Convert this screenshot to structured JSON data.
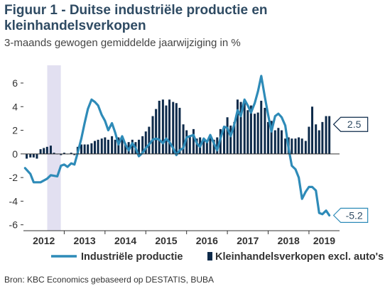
{
  "header": {
    "title": "Figuur 1 - Duitse industriële productie en kleinhandelsverkopen",
    "subtitle": "3-maands gewogen gemiddelde jaarwijziging in %"
  },
  "footer": {
    "source": "Bron: KBC Economics gebaseerd op DESTATIS, BUBA"
  },
  "chart_data": {
    "type": "line",
    "title": "Figuur 1 - Duitse industriële productie en kleinhandelsverkopen",
    "subtitle": "3-maands gewogen gemiddelde jaarwijziging in %",
    "xlabel": "",
    "ylabel": "",
    "xlim": [
      2012.0,
      2019.75
    ],
    "ylim": [
      -6.5,
      7.5
    ],
    "yticks": [
      -6,
      -4,
      -2,
      0,
      2,
      4,
      6
    ],
    "xtick_labels": [
      "2012",
      "2013",
      "2014",
      "2015",
      "2016",
      "2017",
      "2018",
      "2019"
    ],
    "grid": false,
    "legend_position": "bottom",
    "shaded_period": {
      "from": 2012.583,
      "to": 2012.917
    },
    "colors": {
      "line": "#2e8bb8",
      "bars": "#0d2a4a",
      "shade": "#e2e0f1",
      "axis": "#333333",
      "text": "#333333",
      "title": "#2f4b63"
    },
    "series": [
      {
        "name": "Industriële productie",
        "type": "line",
        "x": [
          2012.04,
          2012.17,
          2012.25,
          2012.42,
          2012.58,
          2012.67,
          2012.83,
          2012.92,
          2013.0,
          2013.08,
          2013.17,
          2013.25,
          2013.33,
          2013.42,
          2013.5,
          2013.58,
          2013.67,
          2013.75,
          2013.83,
          2013.92,
          2014.0,
          2014.08,
          2014.17,
          2014.25,
          2014.33,
          2014.42,
          2014.5,
          2014.58,
          2014.67,
          2014.75,
          2014.83,
          2014.92,
          2015.0,
          2015.08,
          2015.17,
          2015.25,
          2015.33,
          2015.42,
          2015.5,
          2015.58,
          2015.67,
          2015.75,
          2015.83,
          2015.92,
          2016.0,
          2016.08,
          2016.17,
          2016.25,
          2016.33,
          2016.42,
          2016.5,
          2016.58,
          2016.67,
          2016.75,
          2016.83,
          2016.92,
          2017.0,
          2017.08,
          2017.17,
          2017.25,
          2017.33,
          2017.42,
          2017.5,
          2017.58,
          2017.67,
          2017.75,
          2017.83,
          2017.92,
          2018.0,
          2018.08,
          2018.17,
          2018.25,
          2018.33,
          2018.42,
          2018.5,
          2018.58,
          2018.67,
          2018.75,
          2018.83,
          2018.92,
          2019.0,
          2019.08,
          2019.17,
          2019.25,
          2019.33,
          2019.42,
          2019.5
        ],
        "values": [
          -1.2,
          -1.7,
          -2.4,
          -2.4,
          -2.1,
          -1.8,
          -1.9,
          -1.0,
          -0.9,
          -1.1,
          -0.8,
          -0.9,
          0.1,
          1.3,
          2.6,
          3.8,
          4.6,
          4.4,
          4.1,
          3.3,
          2.8,
          2.0,
          2.6,
          1.8,
          0.8,
          1.5,
          0.8,
          0.3,
          0.9,
          0.5,
          -0.2,
          0.1,
          0.5,
          0.8,
          1.2,
          1.3,
          1.2,
          0.9,
          1.3,
          1.0,
          0.5,
          -0.1,
          0.3,
          0.5,
          1.4,
          1.5,
          1.6,
          0.9,
          0.6,
          1.3,
          1.0,
          1.6,
          0.9,
          0.3,
          1.3,
          2.3,
          2.2,
          1.5,
          2.5,
          3.7,
          3.2,
          4.6,
          4.1,
          3.5,
          4.3,
          5.3,
          6.6,
          4.8,
          3.3,
          1.9,
          3.2,
          3.4,
          3.1,
          2.4,
          0.5,
          -1.0,
          -1.3,
          -2.0,
          -3.8,
          -3.2,
          -2.8,
          -2.8,
          -3.1,
          -5.0,
          -5.1,
          -4.8,
          -5.2
        ]
      },
      {
        "name": "Kleinhandelsverkopen excl. auto's",
        "type": "bar",
        "x": [
          2012.08,
          2012.17,
          2012.25,
          2012.33,
          2012.42,
          2012.5,
          2012.58,
          2012.67,
          2012.75,
          2012.83,
          2012.92,
          2013.0,
          2013.08,
          2013.17,
          2013.25,
          2013.33,
          2013.42,
          2013.5,
          2013.58,
          2013.67,
          2013.75,
          2013.83,
          2013.92,
          2014.0,
          2014.08,
          2014.17,
          2014.25,
          2014.33,
          2014.42,
          2014.5,
          2014.58,
          2014.67,
          2014.75,
          2014.83,
          2014.92,
          2015.0,
          2015.08,
          2015.17,
          2015.25,
          2015.33,
          2015.42,
          2015.5,
          2015.58,
          2015.67,
          2015.75,
          2015.83,
          2015.92,
          2016.0,
          2016.08,
          2016.17,
          2016.25,
          2016.33,
          2016.42,
          2016.5,
          2016.58,
          2016.67,
          2016.75,
          2016.83,
          2016.92,
          2017.0,
          2017.08,
          2017.17,
          2017.25,
          2017.33,
          2017.42,
          2017.5,
          2017.58,
          2017.67,
          2017.75,
          2017.83,
          2017.92,
          2018.0,
          2018.08,
          2018.17,
          2018.25,
          2018.33,
          2018.42,
          2018.5,
          2018.58,
          2018.67,
          2018.75,
          2018.83,
          2018.92,
          2019.0,
          2019.08,
          2019.17,
          2019.25,
          2019.33,
          2019.42,
          2019.5
        ],
        "values": [
          -0.4,
          -0.3,
          -0.3,
          -0.4,
          0.4,
          0.5,
          0.6,
          0.7,
          0.1,
          0.0,
          -0.1,
          0.1,
          0.0,
          0.1,
          -0.1,
          0.6,
          0.8,
          0.8,
          0.8,
          0.9,
          1.1,
          1.2,
          1.3,
          1.4,
          1.2,
          1.5,
          1.2,
          1.4,
          1.3,
          0.9,
          1.0,
          1.2,
          1.0,
          1.2,
          1.5,
          1.9,
          2.3,
          3.2,
          3.8,
          4.5,
          4.6,
          4.1,
          4.6,
          4.4,
          4.3,
          3.9,
          2.5,
          2.0,
          1.5,
          2.1,
          1.3,
          1.4,
          1.1,
          1.0,
          1.4,
          1.2,
          1.4,
          2.1,
          2.2,
          3.1,
          2.4,
          2.7,
          4.6,
          4.4,
          4.3,
          3.7,
          4.1,
          3.4,
          3.5,
          4.5,
          3.9,
          2.7,
          2.8,
          2.0,
          2.2,
          2.0,
          1.3,
          1.4,
          1.3,
          1.3,
          1.4,
          1.3,
          1.1,
          2.3,
          4.0,
          2.5,
          2.0,
          2.7,
          3.2,
          3.2
        ]
      }
    ],
    "annotations": [
      {
        "label": "2.5",
        "series": "Kleinhandelsverkopen excl. auto's",
        "value": 2.5
      },
      {
        "label": "-5.2",
        "series": "Industriële productie",
        "value": -5.2
      }
    ]
  }
}
